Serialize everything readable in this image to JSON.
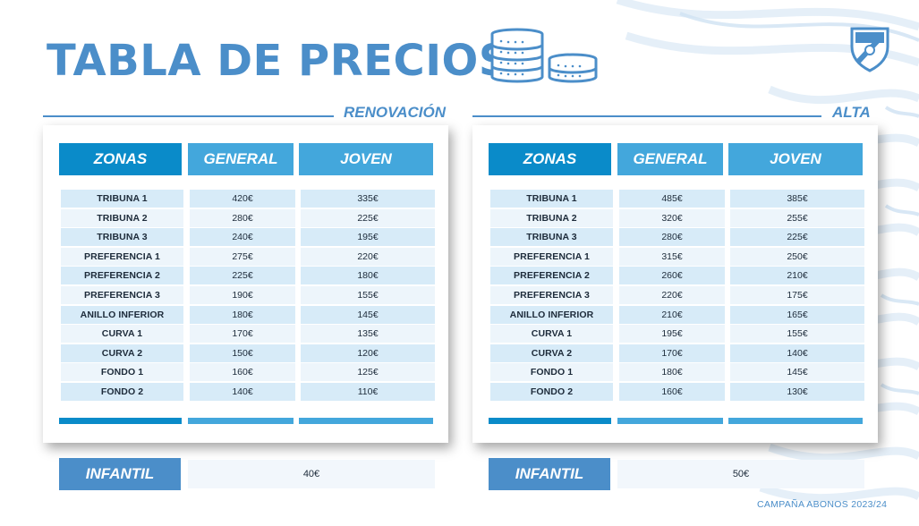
{
  "title": "TABLA DE PRECIOS",
  "footer": "CAMPAÑA ABONOS 2023/24",
  "colors": {
    "brand_blue": "#4b8ec9",
    "header_dark": "#0a8bc9",
    "header_light": "#43a7dc"
  },
  "renovacion": {
    "label": "RENOVACIÓN",
    "headers": [
      "ZONAS",
      "GENERAL",
      "JOVEN"
    ],
    "rows": [
      {
        "zona": "TRIBUNA 1",
        "general": "420€",
        "joven": "335€"
      },
      {
        "zona": "TRIBUNA 2",
        "general": "280€",
        "joven": "225€"
      },
      {
        "zona": "TRIBUNA 3",
        "general": "240€",
        "joven": "195€"
      },
      {
        "zona": "PREFERENCIA 1",
        "general": "275€",
        "joven": "220€"
      },
      {
        "zona": "PREFERENCIA 2",
        "general": "225€",
        "joven": "180€"
      },
      {
        "zona": "PREFERENCIA 3",
        "general": "190€",
        "joven": "155€"
      },
      {
        "zona": "ANILLO INFERIOR",
        "general": "180€",
        "joven": "145€"
      },
      {
        "zona": "CURVA 1",
        "general": "170€",
        "joven": "135€"
      },
      {
        "zona": "CURVA  2",
        "general": "150€",
        "joven": "120€"
      },
      {
        "zona": "FONDO 1",
        "general": "160€",
        "joven": "125€"
      },
      {
        "zona": "FONDO 2",
        "general": "140€",
        "joven": "110€"
      }
    ],
    "infantil_label": "INFANTIL",
    "infantil_price": "40€"
  },
  "alta": {
    "label": "ALTA",
    "headers": [
      "ZONAS",
      "GENERAL",
      "JOVEN"
    ],
    "rows": [
      {
        "zona": "TRIBUNA 1",
        "general": "485€",
        "joven": "385€"
      },
      {
        "zona": "TRIBUNA 2",
        "general": "320€",
        "joven": "255€"
      },
      {
        "zona": "TRIBUNA 3",
        "general": "280€",
        "joven": "225€"
      },
      {
        "zona": "PREFERENCIA 1",
        "general": "315€",
        "joven": "250€"
      },
      {
        "zona": "PREFERENCIA 2",
        "general": "260€",
        "joven": "210€"
      },
      {
        "zona": "PREFERENCIA 3",
        "general": "220€",
        "joven": "175€"
      },
      {
        "zona": "ANILLO INFERIOR",
        "general": "210€",
        "joven": "165€"
      },
      {
        "zona": "CURVA 1",
        "general": "195€",
        "joven": "155€"
      },
      {
        "zona": "CURVA  2",
        "general": "170€",
        "joven": "140€"
      },
      {
        "zona": "FONDO 1",
        "general": "180€",
        "joven": "145€"
      },
      {
        "zona": "FONDO 2",
        "general": "160€",
        "joven": "130€"
      }
    ],
    "infantil_label": "INFANTIL",
    "infantil_price": "50€"
  }
}
